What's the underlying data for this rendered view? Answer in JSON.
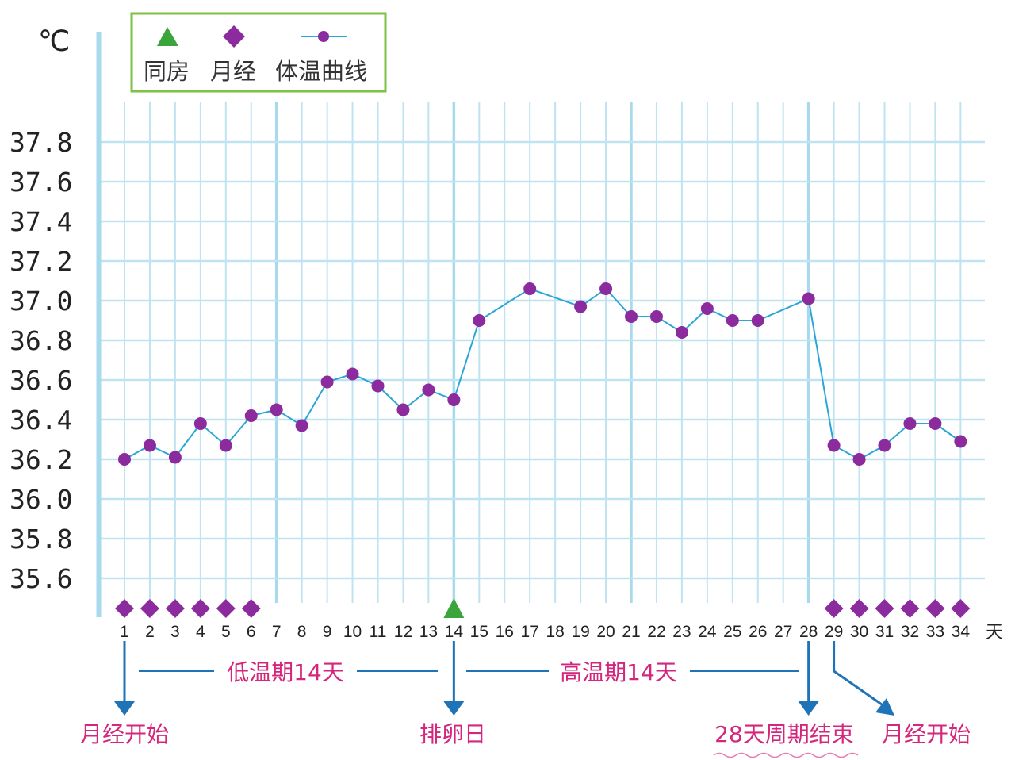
{
  "unit_label": "℃",
  "day_unit": "天",
  "legend": {
    "intercourse": "同房",
    "menstruation": "月经",
    "temperature_curve": "体温曲线"
  },
  "annotations": {
    "low_phase": "低温期14天",
    "high_phase": "高温期14天",
    "period_start_left": "月经开始",
    "ovulation_day": "排卵日",
    "cycle_end": "28天周期结束",
    "period_start_right": "月经开始"
  },
  "colors": {
    "grid": "#bfe3f0",
    "grid_major": "#a9d9ec",
    "line": "#2ba6d6",
    "point": "#8b2b9e",
    "menstruation": "#8b2b9e",
    "intercourse": "#3aa53a",
    "highlight_text": "#c0392b",
    "annotation_text": "#d4267c",
    "arrow": "#1f73b7",
    "legend_border": "#7dc242"
  },
  "chart_data": {
    "type": "line",
    "title": "",
    "xlabel": "天",
    "ylabel": "℃",
    "ylim": [
      35.5,
      37.9
    ],
    "y_ticks": [
      "37.8",
      "37.6",
      "37.4",
      "37.2",
      "37.0",
      "36.8",
      "36.6",
      "36.4",
      "36.2",
      "36.0",
      "35.8",
      "35.6"
    ],
    "y_tick_values": [
      37.8,
      37.6,
      37.4,
      37.2,
      37.0,
      36.8,
      36.6,
      36.4,
      36.2,
      36.0,
      35.8,
      35.6
    ],
    "y_highlight_ticks": [
      "36.6",
      "35.6"
    ],
    "x_ticks": [
      "1",
      "2",
      "3",
      "4",
      "5",
      "6",
      "7",
      "8",
      "9",
      "10",
      "11",
      "12",
      "13",
      "14",
      "15",
      "16",
      "17",
      "18",
      "19",
      "20",
      "21",
      "22",
      "23",
      "24",
      "25",
      "26",
      "27",
      "28",
      "29",
      "30",
      "31",
      "32",
      "33",
      "34"
    ],
    "x_highlight_ticks": [
      "7",
      "14",
      "21",
      "28"
    ],
    "series": [
      {
        "name": "体温曲线",
        "points": [
          [
            1,
            36.2
          ],
          [
            2,
            36.27
          ],
          [
            3,
            36.21
          ],
          [
            4,
            36.38
          ],
          [
            5,
            36.27
          ],
          [
            6,
            36.42
          ],
          [
            7,
            36.45
          ],
          [
            8,
            36.37
          ],
          [
            9,
            36.59
          ],
          [
            10,
            36.63
          ],
          [
            11,
            36.57
          ],
          [
            12,
            36.45
          ],
          [
            13,
            36.55
          ],
          [
            14,
            36.5
          ],
          [
            15,
            36.9
          ],
          [
            17,
            37.06
          ],
          [
            19,
            36.97
          ],
          [
            20,
            37.06
          ],
          [
            21,
            36.92
          ],
          [
            22,
            36.92
          ],
          [
            23,
            36.84
          ],
          [
            24,
            36.96
          ],
          [
            25,
            36.9
          ],
          [
            26,
            36.9
          ],
          [
            28,
            37.01
          ],
          [
            29,
            36.27
          ],
          [
            30,
            36.2
          ],
          [
            31,
            36.27
          ],
          [
            32,
            36.38
          ],
          [
            33,
            36.38
          ],
          [
            34,
            36.29
          ]
        ]
      }
    ],
    "menstruation_days": [
      1,
      2,
      3,
      4,
      5,
      6,
      29,
      30,
      31,
      32,
      33,
      34
    ],
    "intercourse_days": [
      14
    ],
    "major_gridline_days": [
      7,
      14,
      21,
      28
    ]
  }
}
